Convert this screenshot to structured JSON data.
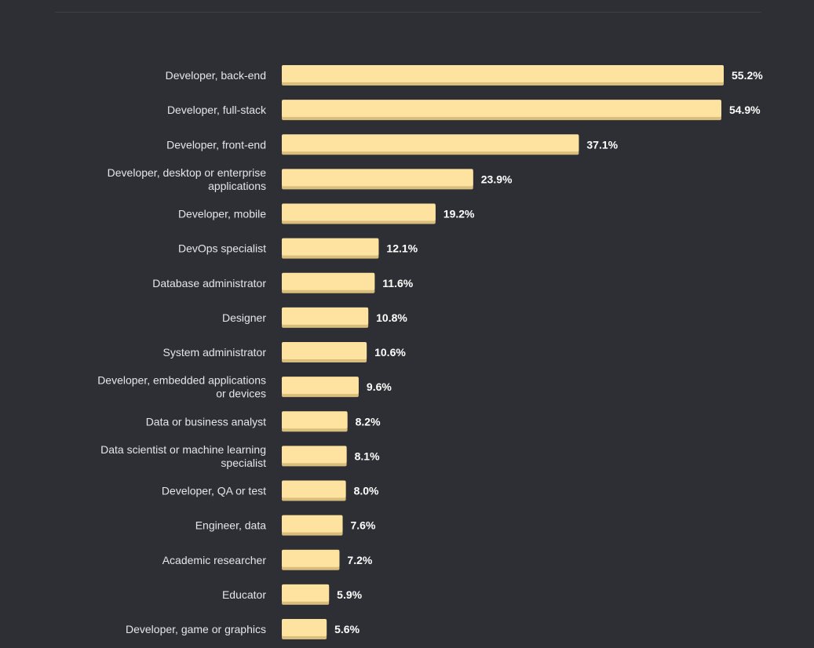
{
  "chart_data": {
    "type": "bar",
    "orientation": "horizontal",
    "value_suffix": "%",
    "bar_color": "#fee3a0",
    "bar_shadow_color": "#d8bd7c",
    "categories": [
      [
        "Developer, back-end"
      ],
      [
        "Developer, full-stack"
      ],
      [
        "Developer, front-end"
      ],
      [
        "Developer, desktop or enterprise",
        "applications"
      ],
      [
        "Developer, mobile"
      ],
      [
        "DevOps specialist"
      ],
      [
        "Database administrator"
      ],
      [
        "Designer"
      ],
      [
        "System administrator"
      ],
      [
        "Developer, embedded applications",
        "or devices"
      ],
      [
        "Data or business analyst"
      ],
      [
        "Data scientist or machine learning",
        "specialist"
      ],
      [
        "Developer, QA or test"
      ],
      [
        "Engineer, data"
      ],
      [
        "Academic researcher"
      ],
      [
        "Educator"
      ],
      [
        "Developer, game or graphics"
      ]
    ],
    "values": [
      55.2,
      54.9,
      37.1,
      23.9,
      19.2,
      12.1,
      11.6,
      10.8,
      10.6,
      9.6,
      8.2,
      8.1,
      8.0,
      7.6,
      7.2,
      5.9,
      5.6
    ],
    "value_labels": [
      "55.2%",
      "54.9%",
      "37.1%",
      "23.9%",
      "19.2%",
      "12.1%",
      "11.6%",
      "10.8%",
      "10.6%",
      "9.6%",
      "8.2%",
      "8.1%",
      "8.0%",
      "7.6%",
      "7.2%",
      "5.9%",
      "5.6%"
    ],
    "xlim": [
      0,
      55.2
    ],
    "title": "",
    "xlabel": "",
    "ylabel": ""
  }
}
